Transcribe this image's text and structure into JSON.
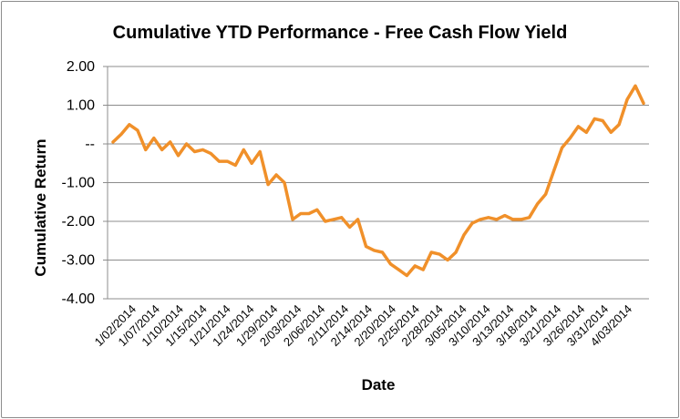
{
  "chart_data": {
    "type": "line",
    "title": "Cumulative YTD Performance - Free Cash Flow Yield",
    "xlabel": "Date",
    "ylabel": "Cumulative Return",
    "ylim": [
      -4,
      2
    ],
    "yticks": [
      {
        "value": 2,
        "label": "2.00"
      },
      {
        "value": 1,
        "label": "1.00"
      },
      {
        "value": 0,
        "label": "--"
      },
      {
        "value": -1,
        "label": "-1.00"
      },
      {
        "value": -2,
        "label": "-2.00"
      },
      {
        "value": -3,
        "label": "-3.00"
      },
      {
        "value": -4,
        "label": "-4.00"
      }
    ],
    "xtick_labels": [
      "1/02/2014",
      "1/07/2014",
      "1/10/2014",
      "1/15/2014",
      "1/21/2014",
      "1/24/2014",
      "1/29/2014",
      "2/03/2014",
      "2/06/2014",
      "2/11/2014",
      "2/14/2014",
      "2/20/2014",
      "2/25/2014",
      "2/28/2014",
      "3/05/2014",
      "3/10/2014",
      "3/13/2014",
      "3/18/2014",
      "3/21/2014",
      "3/26/2014",
      "3/31/2014",
      "4/03/2014"
    ],
    "grid": true,
    "legend": "none",
    "color": "#f0902a",
    "series": [
      {
        "values": [
          0.05,
          0.25,
          0.5,
          0.35,
          -0.15,
          0.15,
          -0.15,
          0.05,
          -0.3,
          0.0,
          -0.2,
          -0.15,
          -0.25,
          -0.45,
          -0.45,
          -0.55,
          -0.15,
          -0.5,
          -0.2,
          -1.05,
          -0.8,
          -1.0,
          -1.95,
          -1.8,
          -1.8,
          -1.7,
          -2.0,
          -1.95,
          -1.9,
          -2.15,
          -1.95,
          -2.65,
          -2.75,
          -2.8,
          -3.1,
          -3.25,
          -3.4,
          -3.15,
          -3.25,
          -2.8,
          -2.85,
          -3.0,
          -2.8,
          -2.35,
          -2.05,
          -1.95,
          -1.9,
          -1.95,
          -1.85,
          -1.95,
          -1.95,
          -1.9,
          -1.55,
          -1.3,
          -0.7,
          -0.1,
          0.15,
          0.45,
          0.3,
          0.65,
          0.6,
          0.3,
          0.5,
          1.15,
          1.5,
          1.05
        ]
      }
    ]
  }
}
